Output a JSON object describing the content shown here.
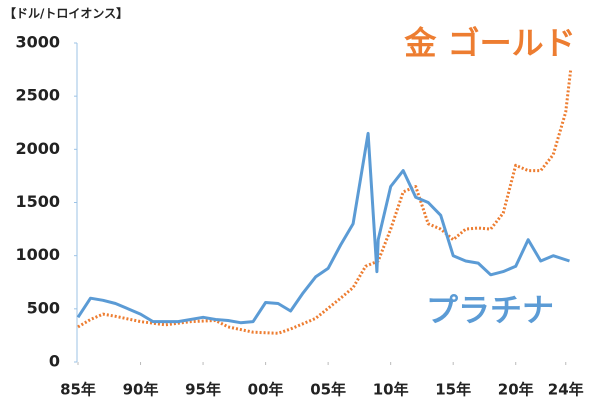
{
  "chart_data": {
    "type": "line",
    "y_label": "【ドル/トロイオンス】",
    "xlim": [
      1985,
      2024.5
    ],
    "xticks": [
      {
        "value": 1985,
        "label": "85年"
      },
      {
        "value": 1990,
        "label": "90年"
      },
      {
        "value": 1995,
        "label": "95年"
      },
      {
        "value": 2000,
        "label": "00年"
      },
      {
        "value": 2005,
        "label": "05年"
      },
      {
        "value": 2010,
        "label": "10年"
      },
      {
        "value": 2015,
        "label": "15年"
      },
      {
        "value": 2020,
        "label": "20年"
      },
      {
        "value": 2024,
        "label": "24年"
      }
    ],
    "ylim": [
      0,
      3000
    ],
    "yticks": [
      0,
      500,
      1000,
      1500,
      2000,
      2500,
      3000
    ],
    "series": [
      {
        "name": "金 ゴールド",
        "color": "#ed7d31",
        "dash": true,
        "x": [
          1985,
          1986,
          1987,
          1988,
          1990,
          1992,
          1994,
          1996,
          1997,
          1999,
          2001,
          2002,
          2004,
          2006,
          2007,
          2008,
          2009,
          2010,
          2011,
          2012,
          2013,
          2014,
          2015,
          2016,
          2017,
          2018,
          2019,
          2020,
          2021,
          2022,
          2023,
          2024,
          2024.4
        ],
        "values": [
          330,
          400,
          450,
          430,
          380,
          350,
          380,
          390,
          330,
          280,
          270,
          310,
          410,
          600,
          700,
          900,
          950,
          1250,
          1600,
          1650,
          1300,
          1250,
          1150,
          1250,
          1260,
          1250,
          1400,
          1850,
          1800,
          1800,
          1950,
          2350,
          2750
        ]
      },
      {
        "name": "プラチナ",
        "color": "#5b9bd5",
        "dash": false,
        "x": [
          1985,
          1986,
          1987,
          1988,
          1990,
          1991,
          1993,
          1995,
          1996,
          1997,
          1998,
          1999,
          2000,
          2001,
          2002,
          2003,
          2004,
          2005,
          2006,
          2007,
          2008.2,
          2008.9,
          2009,
          2010,
          2011,
          2012,
          2013,
          2014,
          2015,
          2016,
          2017,
          2018,
          2019,
          2020,
          2021,
          2022,
          2023,
          2024.3
        ],
        "values": [
          420,
          600,
          580,
          550,
          450,
          380,
          380,
          420,
          400,
          390,
          370,
          380,
          560,
          550,
          480,
          650,
          800,
          880,
          1100,
          1300,
          2150,
          850,
          1150,
          1650,
          1800,
          1550,
          1500,
          1380,
          1000,
          950,
          930,
          820,
          850,
          900,
          1150,
          950,
          1000,
          950
        ]
      }
    ]
  }
}
